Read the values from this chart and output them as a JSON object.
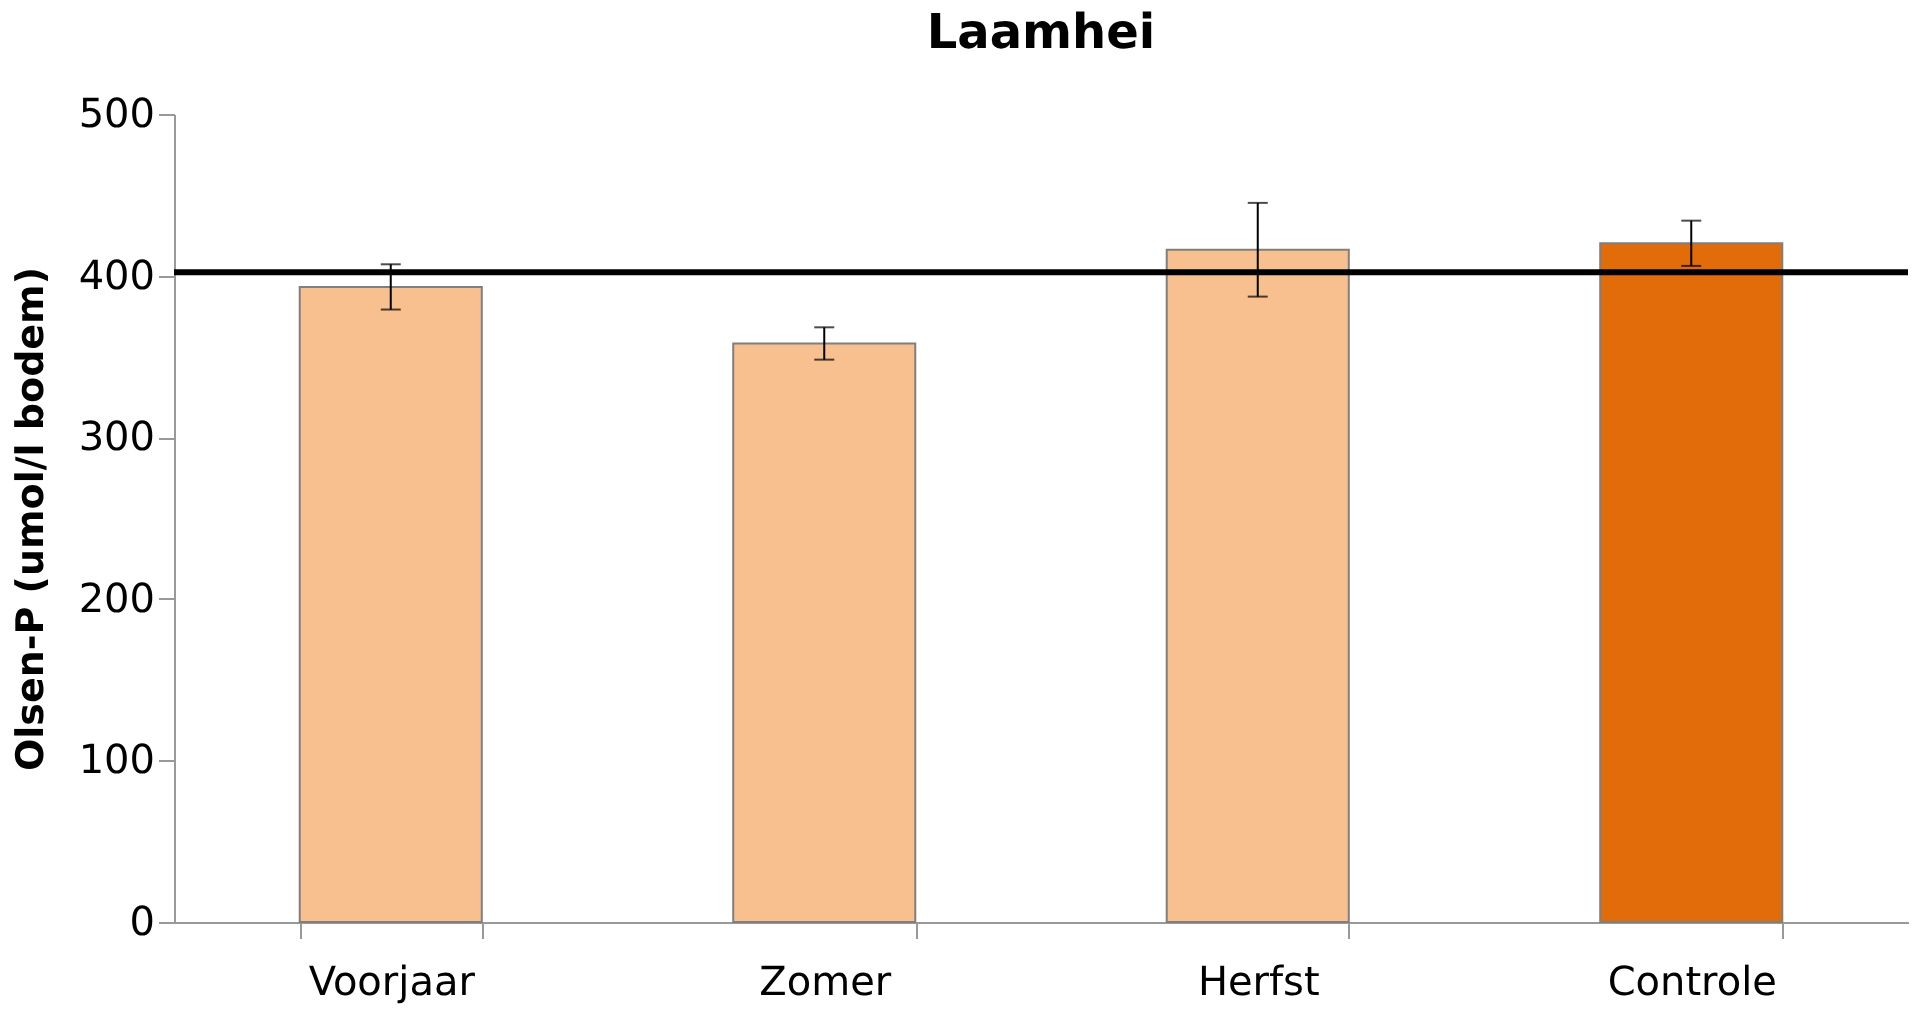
{
  "chart_data": {
    "type": "bar",
    "title": "Laamhei",
    "ylabel": "Olsen-P (umol/l bodem)",
    "categories": [
      "Voorjaar",
      "Zomer",
      "Herfst",
      "Controle"
    ],
    "values": [
      393,
      358,
      416,
      420
    ],
    "colors": [
      "#f9c08f",
      "#f9c08f",
      "#f9c08f",
      "#e36c0a"
    ],
    "errors": [
      14,
      10,
      29,
      14
    ],
    "ylim": [
      0,
      500
    ],
    "yticks": [
      0,
      100,
      200,
      300,
      400,
      500
    ],
    "grid": false,
    "ref_lines": [
      {
        "axis": "y",
        "value": 402,
        "color": "#000000",
        "line_style": "solid"
      }
    ]
  }
}
